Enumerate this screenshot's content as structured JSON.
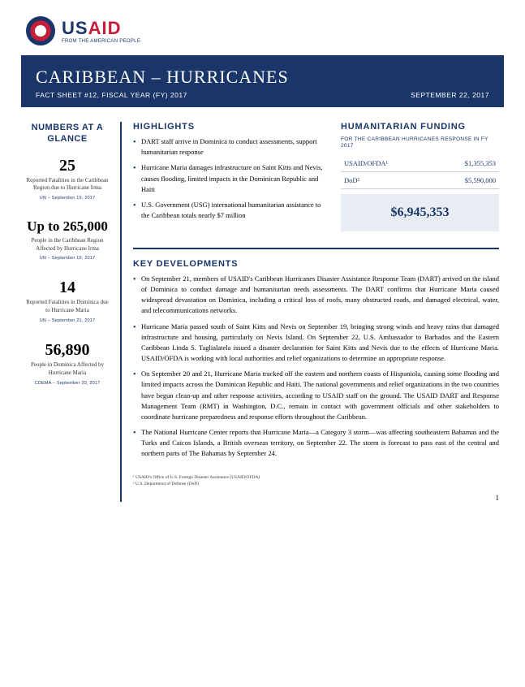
{
  "logo": {
    "main_navy": "US",
    "main_red": "AID",
    "sub": "FROM THE AMERICAN PEOPLE"
  },
  "banner": {
    "title": "CARIBBEAN – HURRICANES",
    "factsheet": "FACT SHEET #12, FISCAL YEAR (FY) 2017",
    "date": "SEPTEMBER 22, 2017"
  },
  "sidebar": {
    "title": "NUMBERS AT A GLANCE",
    "stats": [
      {
        "num": "25",
        "desc": "Reported Fatalities in the Caribbean Region due to Hurricane Irma",
        "src": "UN – September 19, 2017"
      },
      {
        "num": "Up to 265,000",
        "desc": "People in the Caribbean Region Affected by Hurricane Irma",
        "src": "UN – September 19, 2017"
      },
      {
        "num": "14",
        "desc": "Reported Fatalities in Dominica due to Hurricane Maria",
        "src": "UN – September 21, 2017"
      },
      {
        "num": "56,890",
        "desc": "People in Dominica Affected by Hurricane Maria",
        "src": "CDEMA – September 20, 2017"
      }
    ]
  },
  "highlights": {
    "title": "HIGHLIGHTS",
    "items": [
      "DART staff arrive in Dominica to conduct assessments, support humanitarian response",
      "Hurricane Maria damages infrastructure on Saint Kitts and Nevis, causes flooding, limited impacts in the Dominican Republic and Haiti",
      "U.S. Government (USG) international humanitarian assistance to the Caribbean totals nearly $7 million"
    ]
  },
  "funding": {
    "title": "HUMANITARIAN FUNDING",
    "subtitle": "FOR THE CARIBBEAN HURRICANES RESPONSE IN FY 2017",
    "rows": [
      {
        "label": "USAID/OFDA¹",
        "value": "$1,355,353"
      },
      {
        "label": "DoD²",
        "value": "$5,590,000"
      }
    ],
    "total": "$6,945,353"
  },
  "key_dev": {
    "title": "KEY DEVELOPMENTS",
    "items": [
      "On September 21, members of USAID's Caribbean Hurricanes Disaster Assistance Response Team (DART) arrived on the island of Dominica to conduct damage and humanitarian needs assessments.  The DART confirms that Hurricane Maria caused widespread devastation on Dominica, including a critical loss of roofs, many obstructed roads, and damaged electrical, water, and telecommunications networks.",
      "Hurricane Maria passed south of Saint Kitts and Nevis on September 19, bringing strong winds and heavy rains that damaged infrastructure and housing, particularly on Nevis Island.  On September 22, U.S. Ambassador to Barbados and the Eastern Caribbean Linda S. Taglialatela issued a disaster declaration for Saint Kitts and Nevis due to the effects of Hurricane Maria.  USAID/OFDA is working with local authorities and relief organizations to determine an appropriate response.",
      "On September 20 and 21, Hurricane Maria tracked off the eastern and northern coasts of Hispaniola, causing some flooding and limited impacts across the Dominican Republic and Haiti.  The national governments and relief organizations in the two countries have begun clean-up and other response activities, according to USAID staff on the ground.  The USAID DART and Response Management Team (RMT) in Washington, D.C., remain in contact with government officials and other stakeholders to coordinate hurricane preparedness and response efforts throughout the Caribbean.",
      "The National Hurricane Center reports that Hurricane Maria—a Category 3 storm—was affecting southeastern Bahamas and the Turks and Caicos Islands, a British overseas territory, on September 22.  The storm is forecast to pass east of the central and northern parts of The Bahamas by September 24."
    ]
  },
  "footnotes": [
    "¹ USAID's Office of U.S. Foreign Disaster Assistance (USAID/OFDA)",
    "² U.S. Department of Defense (DoD)"
  ],
  "page_num": "1",
  "colors": {
    "navy": "#1a3668",
    "red": "#c41e3a",
    "light_blue": "#e8edf3",
    "border_blue": "#c8d0dd"
  }
}
